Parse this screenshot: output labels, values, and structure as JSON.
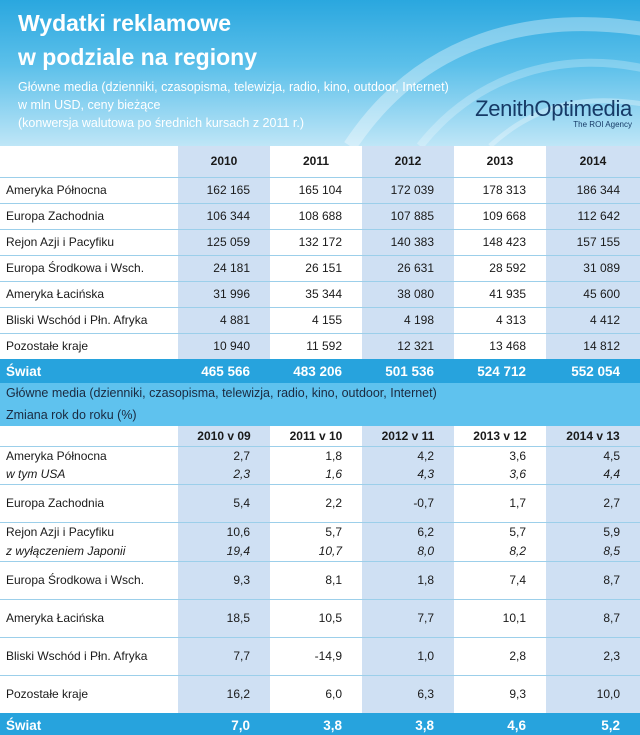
{
  "header": {
    "title_line1": "Wydatki reklamowe",
    "title_line2": "w podziale na regiony",
    "sub_line1": "Główne media (dzienniki, czasopisma, telewizja, radio, kino, outdoor, Internet)",
    "sub_line2": "w mln USD, ceny bieżące",
    "sub_line3": "(konwersja walutowa po średnich kursach z 2011 r.)",
    "logo_name": "ZenithOptimedia",
    "logo_tagline": "The ROI Agency"
  },
  "table1": {
    "columns": [
      "2010",
      "2011",
      "2012",
      "2013",
      "2014"
    ],
    "rows": [
      {
        "label": "Ameryka Północna",
        "values": [
          "162 165",
          "165 104",
          "172 039",
          "178 313",
          "186 344"
        ]
      },
      {
        "label": "Europa Zachodnia",
        "values": [
          "106 344",
          "108 688",
          "107 885",
          "109 668",
          "112 642"
        ]
      },
      {
        "label": "Rejon Azji i Pacyfiku",
        "values": [
          "125 059",
          "132 172",
          "140 383",
          "148 423",
          "157 155"
        ]
      },
      {
        "label": "Europa Środkowa i Wsch.",
        "values": [
          "24 181",
          "26 151",
          "26 631",
          "28 592",
          "31 089"
        ]
      },
      {
        "label": "Ameryka Łacińska",
        "values": [
          "31 996",
          "35 344",
          "38 080",
          "41 935",
          "45 600"
        ]
      },
      {
        "label": "Bliski Wschód i Płn. Afryka",
        "values": [
          "4 881",
          "4 155",
          "4 198",
          "4 313",
          "4 412"
        ]
      },
      {
        "label": "Pozostałe kraje",
        "values": [
          "10 940",
          "11 592",
          "12 321",
          "13 468",
          "14 812"
        ]
      }
    ],
    "total": {
      "label": "Świat",
      "values": [
        "465 566",
        "483 206",
        "501 536",
        "524 712",
        "552 054"
      ]
    }
  },
  "section2": {
    "line1": "Główne media (dzienniki, czasopisma, telewizja, radio, kino, outdoor, Internet)",
    "line2": "Zmiana rok do roku (%)"
  },
  "table2": {
    "columns": [
      "2010 v 09",
      "2011 v 10",
      "2012 v 11",
      "2013 v 12",
      "2014 v 13"
    ],
    "rows": [
      {
        "label": "Ameryka Północna",
        "values": [
          "2,7",
          "1,8",
          "4,2",
          "3,6",
          "4,5"
        ]
      },
      {
        "label": "w tym USA",
        "values": [
          "2,3",
          "1,6",
          "4,3",
          "3,6",
          "4,4"
        ]
      },
      {
        "label": "Europa Zachodnia",
        "values": [
          "5,4",
          "2,2",
          "-0,7",
          "1,7",
          "2,7"
        ]
      },
      {
        "label": "Rejon Azji i Pacyfiku",
        "values": [
          "10,6",
          "5,7",
          "6,2",
          "5,7",
          "5,9"
        ]
      },
      {
        "label": "z wyłączeniem Japonii",
        "values": [
          "19,4",
          "10,7",
          "8,0",
          "8,2",
          "8,5"
        ]
      },
      {
        "label": "Europa Środkowa i Wsch.",
        "values": [
          "9,3",
          "8,1",
          "1,8",
          "7,4",
          "8,7"
        ]
      },
      {
        "label": "Ameryka Łacińska",
        "values": [
          "18,5",
          "10,5",
          "7,7",
          "10,1",
          "8,7"
        ]
      },
      {
        "label": "Bliski Wschód i Płn. Afryka",
        "values": [
          "7,7",
          "-14,9",
          "1,0",
          "2,8",
          "2,3"
        ]
      },
      {
        "label": "Pozostałe kraje",
        "values": [
          "16,2",
          "6,0",
          "6,3",
          "9,3",
          "10,0"
        ]
      }
    ],
    "total": {
      "label": "Świat",
      "values": [
        "7,0",
        "3,8",
        "3,8",
        "4,6",
        "5,2"
      ]
    }
  },
  "colors": {
    "header_blue": "#2aa7df",
    "band_blue": "#cfe0f3",
    "total_blue": "#27a3dd",
    "section_blue": "#5fc2ee",
    "logo_navy": "#163a66"
  }
}
